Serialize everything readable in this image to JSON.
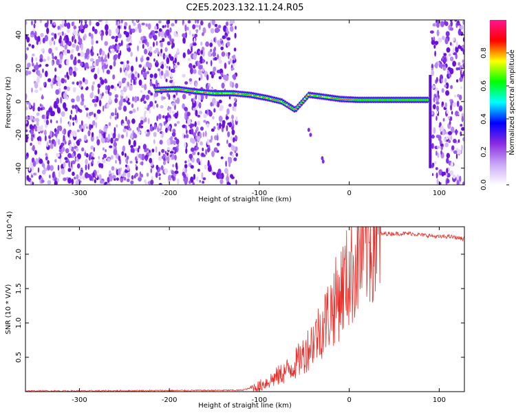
{
  "title": "C2E5.2023.132.11.24.R05",
  "chart_data": [
    {
      "type": "heatmap",
      "xlabel": "Height of straight line (km)",
      "ylabel": "Frequency (Hz)",
      "xlim": [
        -360,
        128
      ],
      "ylim": [
        -50,
        49
      ],
      "xticks": [
        -300,
        -200,
        -100,
        0,
        100
      ],
      "yticks": [
        -40,
        -20,
        0,
        20,
        40
      ],
      "colorbar": {
        "label": "Normalized spectral amplitude",
        "range": [
          0,
          1
        ],
        "ticks": [
          0.0,
          0.2,
          0.4,
          0.6,
          0.8
        ],
        "colormap": [
          "#ffffff",
          "#c9a7f5",
          "#8a2be2",
          "#0000ff",
          "#00ffff",
          "#00ff00",
          "#ffff00",
          "#ff0000",
          "#ff1493"
        ]
      },
      "noise_regions_km": [
        [
          -360,
          -190
        ],
        [
          -185,
          -125
        ],
        [
          92,
          128
        ]
      ],
      "signal_ridge": {
        "x": [
          -215,
          -190,
          -170,
          -150,
          -130,
          -110,
          -90,
          -75,
          -60,
          -45,
          -30,
          -10,
          10,
          40,
          70,
          88
        ],
        "y": [
          7,
          7.5,
          6,
          5,
          5,
          4,
          2,
          0,
          -5,
          4,
          3,
          1.5,
          1,
          1,
          1,
          1
        ]
      },
      "grid": false
    },
    {
      "type": "line",
      "xlabel": "Height of straight line (km)",
      "ylabel": "SNR (10 * V/V)",
      "y_multiplier": "(x10^4)",
      "xlim": [
        -360,
        128
      ],
      "ylim": [
        0,
        2.4
      ],
      "xticks": [
        -300,
        -200,
        -100,
        0,
        100
      ],
      "yticks": [
        0.5,
        1.0,
        1.5,
        2.0
      ],
      "yticklabels": [
        "0.5",
        "1.0",
        "1.5",
        "2.0"
      ],
      "color": "#e8302a",
      "series": [
        {
          "x": [
            -360,
            -300,
            -200,
            -120,
            -100,
            -90,
            -80,
            -70,
            -60,
            -50,
            -40,
            -30,
            -20,
            -10,
            0,
            10,
            20,
            30,
            40,
            50,
            60,
            70,
            80,
            90,
            100,
            110,
            120,
            128
          ],
          "y": [
            0.01,
            0.01,
            0.015,
            0.02,
            0.08,
            0.15,
            0.22,
            0.3,
            0.4,
            0.55,
            0.75,
            0.95,
            1.2,
            1.45,
            1.7,
            1.95,
            2.15,
            2.28,
            2.3,
            2.3,
            2.3,
            2.3,
            2.28,
            2.27,
            2.25,
            2.26,
            2.24,
            2.22
          ]
        }
      ],
      "grid": false
    }
  ]
}
